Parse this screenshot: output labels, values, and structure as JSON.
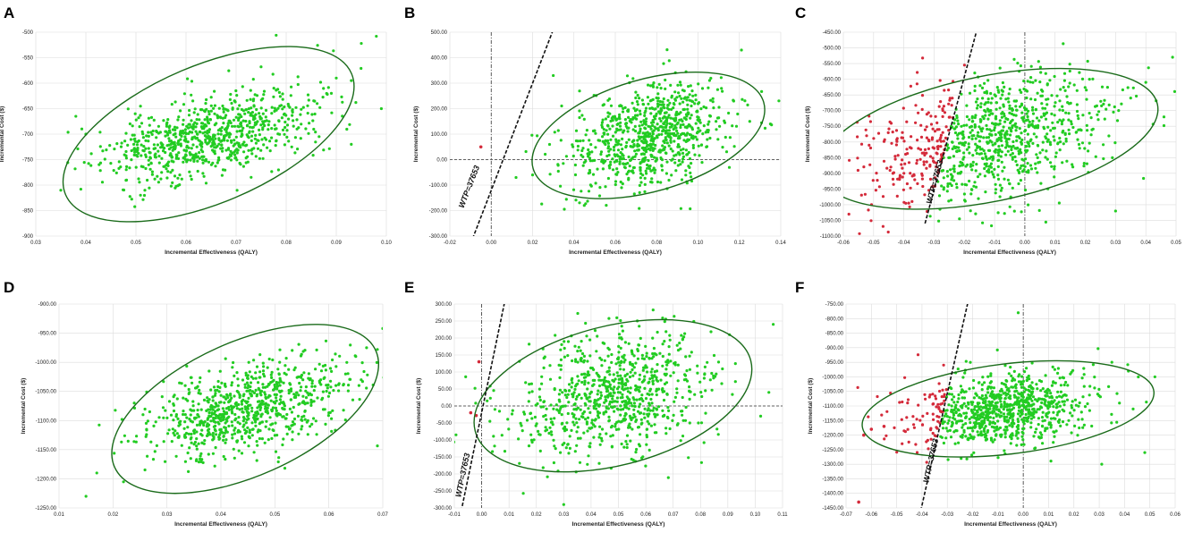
{
  "figure": {
    "panel_letters": [
      "A",
      "B",
      "C",
      "D",
      "E",
      "F"
    ]
  },
  "chart_data": [
    {
      "type": "scatter",
      "panel": "A",
      "xlabel": "Incremental Effectiveness (QALY)",
      "ylabel": "Incremental Cost ($)",
      "xlim": [
        0.03,
        0.1
      ],
      "ylim": [
        -900,
        -500
      ],
      "xticks": [
        0.03,
        0.04,
        0.05,
        0.06,
        0.07,
        0.08,
        0.09,
        0.1
      ],
      "xtick_labels": [
        "0.03",
        "0.04",
        "0.05",
        "0.06",
        "0.07",
        "0.08",
        "0.09",
        "0.10"
      ],
      "yticks": [
        -500,
        -550,
        -600,
        -650,
        -700,
        -750,
        -800,
        -850,
        -900
      ],
      "ytick_labels": [
        "-500",
        "-550",
        "-600",
        "-650",
        "-700",
        "-750",
        "-800",
        "-850",
        "-900"
      ],
      "cloud": {
        "n_points": 820,
        "center": [
          0.0645,
          -703
        ],
        "sd": [
          0.0105,
          44
        ],
        "corr": 0.5,
        "seed": 11,
        "color": "#22cc22"
      },
      "ellipse": {
        "center": [
          0.0645,
          -700
        ],
        "rx": 0.031,
        "ry": 135,
        "tilt": 0.4,
        "color": "#1a6b1a"
      },
      "extra_points": [
        {
          "x": 0.035,
          "y": -810
        },
        {
          "x": 0.038,
          "y": -665
        },
        {
          "x": 0.039,
          "y": -808
        },
        {
          "x": 0.04,
          "y": -700
        },
        {
          "x": 0.078,
          "y": -506
        },
        {
          "x": 0.09,
          "y": -590
        },
        {
          "x": 0.093,
          "y": -595
        },
        {
          "x": 0.095,
          "y": -522
        },
        {
          "x": 0.098,
          "y": -508
        },
        {
          "x": 0.093,
          "y": -720
        },
        {
          "x": 0.099,
          "y": -650
        }
      ],
      "wtp": null,
      "ref_x": null,
      "ref_y": null,
      "red_points": []
    },
    {
      "type": "scatter",
      "panel": "B",
      "xlabel": "Incremental Effectiveness (QALY)",
      "ylabel": "Incremental Cost ($)",
      "xlim": [
        -0.02,
        0.14
      ],
      "ylim": [
        -300,
        500
      ],
      "xticks": [
        -0.02,
        0,
        0.02,
        0.04,
        0.06,
        0.08,
        0.1,
        0.12,
        0.14
      ],
      "xtick_labels": [
        "-0.02",
        "0.00",
        "0.02",
        "0.04",
        "0.06",
        "0.08",
        "0.10",
        "0.12",
        "0.14"
      ],
      "yticks": [
        500,
        400,
        300,
        200,
        100,
        0,
        -100,
        -200,
        -300
      ],
      "ytick_labels": [
        "500.00",
        "400.00",
        "300.00",
        "200.00",
        "100.00",
        "0.00",
        "-100.00",
        "-200.00",
        "-300.00"
      ],
      "cloud": {
        "n_points": 820,
        "center": [
          0.076,
          95
        ],
        "sd": [
          0.019,
          105
        ],
        "corr": 0.4,
        "seed": 22,
        "color": "#22cc22"
      },
      "ellipse": {
        "center": [
          0.076,
          95
        ],
        "rx": 0.058,
        "ry": 220,
        "tilt": 0.28,
        "color": "#1a6b1a"
      },
      "extra_points": [
        {
          "x": 0.03,
          "y": 330
        },
        {
          "x": 0.012,
          "y": -70
        },
        {
          "x": 0.02,
          "y": -60
        },
        {
          "x": 0.135,
          "y": 140
        },
        {
          "x": 0.121,
          "y": 430
        },
        {
          "x": 0.125,
          "y": 150
        }
      ],
      "wtp": {
        "label": "WTP=37653",
        "p1": [
          -0.009,
          -310
        ],
        "p2": [
          0.03,
          510
        ],
        "label_at": [
          -0.0095,
          -110
        ]
      },
      "ref_x": 0,
      "ref_y": 0,
      "red_points": [
        {
          "x": -0.005,
          "y": 50
        }
      ]
    },
    {
      "type": "scatter",
      "panel": "C",
      "xlabel": "Incremental Effectiveness (QALY)",
      "ylabel": "Incremental Cost ($)",
      "xlim": [
        -0.06,
        0.05
      ],
      "ylim": [
        -1100,
        -450
      ],
      "xticks": [
        -0.06,
        -0.05,
        -0.04,
        -0.03,
        -0.02,
        -0.01,
        0,
        0.01,
        0.02,
        0.03,
        0.04,
        0.05
      ],
      "xtick_labels": [
        "-0.06",
        "-0.05",
        "-0.04",
        "-0.03",
        "-0.02",
        "-0.01",
        "0.00",
        "0.01",
        "0.02",
        "0.03",
        "0.04",
        "0.05"
      ],
      "yticks": [
        -450,
        -500,
        -550,
        -600,
        -650,
        -700,
        -750,
        -800,
        -850,
        -900,
        -950,
        -1000,
        -1050,
        -1100
      ],
      "ytick_labels": [
        "-450.00",
        "-500.00",
        "-550.00",
        "-600.00",
        "-650.00",
        "-700.00",
        "-750.00",
        "-800.00",
        "-850.00",
        "-900.00",
        "-950.00",
        "-1000.00",
        "-1050.00",
        "-1100.00"
      ],
      "cloud": {
        "n_points": 950,
        "center": [
          -0.012,
          -790
        ],
        "sd": [
          0.019,
          105
        ],
        "corr": 0.4,
        "seed": 33,
        "color": "#22cc22",
        "split_color": "#d42a3a"
      },
      "ellipse": {
        "center": [
          -0.012,
          -790
        ],
        "rx": 0.057,
        "ry": 200,
        "tilt": 0.2,
        "color": "#1a6b1a"
      },
      "extra_points": [
        {
          "x": 0.04,
          "y": -610
        },
        {
          "x": 0.046,
          "y": -720
        },
        {
          "x": 0.046,
          "y": -748
        },
        {
          "x": 0.03,
          "y": -1020
        },
        {
          "x": 0.035,
          "y": -660
        }
      ],
      "wtp": {
        "label": "WTP=37653",
        "p1": [
          -0.033,
          -1060
        ],
        "p2": [
          -0.0155,
          -430
        ],
        "label_at": [
          -0.029,
          -930
        ]
      },
      "ref_x": 0,
      "ref_y": null,
      "red_points": []
    },
    {
      "type": "scatter",
      "panel": "D",
      "xlabel": "Incremental Effectiveness (QALY)",
      "ylabel": "Incremental Cost ($)",
      "xlim": [
        0.01,
        0.07
      ],
      "ylim": [
        -1250,
        -900
      ],
      "xticks": [
        0.01,
        0.02,
        0.03,
        0.04,
        0.05,
        0.06,
        0.07
      ],
      "xtick_labels": [
        "0.01",
        "0.02",
        "0.03",
        "0.04",
        "0.05",
        "0.06",
        "0.07"
      ],
      "yticks": [
        -900,
        -950,
        -1000,
        -1050,
        -1100,
        -1150,
        -1200,
        -1250
      ],
      "ytick_labels": [
        "-900.00",
        "-950.00",
        "-1000.00",
        "-1050.00",
        "-1100.00",
        "-1150.00",
        "-1200.00",
        "-1250.00"
      ],
      "cloud": {
        "n_points": 820,
        "center": [
          0.0445,
          -1082
        ],
        "sd": [
          0.0095,
          42
        ],
        "corr": 0.5,
        "seed": 44,
        "color": "#22cc22"
      },
      "ellipse": {
        "center": [
          0.0445,
          -1080
        ],
        "rx": 0.0265,
        "ry": 115,
        "tilt": 0.42,
        "color": "#1a6b1a"
      },
      "extra_points": [
        {
          "x": 0.015,
          "y": -1230
        },
        {
          "x": 0.017,
          "y": -1190
        },
        {
          "x": 0.065,
          "y": -990
        },
        {
          "x": 0.067,
          "y": -975
        },
        {
          "x": 0.069,
          "y": -978
        },
        {
          "x": 0.07,
          "y": -942
        },
        {
          "x": 0.066,
          "y": -1030
        }
      ],
      "wtp": null,
      "ref_x": null,
      "ref_y": null,
      "red_points": []
    },
    {
      "type": "scatter",
      "panel": "E",
      "xlabel": "Incremental Effectiveness (QALY)",
      "ylabel": "Incremental Cost ($)",
      "xlim": [
        -0.01,
        0.11
      ],
      "ylim": [
        -300,
        300
      ],
      "xticks": [
        -0.01,
        0,
        0.01,
        0.02,
        0.03,
        0.04,
        0.05,
        0.06,
        0.07,
        0.08,
        0.09,
        0.1,
        0.11
      ],
      "xtick_labels": [
        "-0.01",
        "0.00",
        "0.01",
        "0.02",
        "0.03",
        "0.04",
        "0.05",
        "0.06",
        "0.07",
        "0.08",
        "0.09",
        "0.10",
        "0.11"
      ],
      "yticks": [
        300,
        250,
        200,
        150,
        100,
        50,
        0,
        -50,
        -100,
        -150,
        -200,
        -250,
        -300
      ],
      "ytick_labels": [
        "300.00",
        "250.00",
        "200.00",
        "150.00",
        "100.00",
        "50.00",
        "0.00",
        "-50.00",
        "-100.00",
        "-150.00",
        "-200.00",
        "-250.00",
        "-300.00"
      ],
      "cloud": {
        "n_points": 820,
        "center": [
          0.048,
          30
        ],
        "sd": [
          0.018,
          90
        ],
        "corr": 0.25,
        "seed": 55,
        "color": "#22cc22"
      },
      "ellipse": {
        "center": [
          0.048,
          30
        ],
        "rx": 0.052,
        "ry": 205,
        "tilt": 0.25,
        "color": "#1a6b1a"
      },
      "extra_points": [
        {
          "x": 0.105,
          "y": 40
        },
        {
          "x": 0.102,
          "y": -30
        },
        {
          "x": 0.03,
          "y": -290
        },
        {
          "x": 0.002,
          "y": 15
        },
        {
          "x": 0.003,
          "y": -45
        }
      ],
      "wtp": {
        "label": "WTP=37653",
        "p1": [
          -0.0075,
          -310
        ],
        "p2": [
          0.0085,
          310
        ],
        "label_at": [
          -0.006,
          -205
        ]
      },
      "ref_x": 0,
      "ref_y": 0,
      "red_points": [
        {
          "x": -0.001,
          "y": 130
        },
        {
          "x": -0.004,
          "y": -20
        },
        {
          "x": -0.002,
          "y": -28
        }
      ]
    },
    {
      "type": "scatter",
      "panel": "F",
      "xlabel": "Incremental Effectiveness (QALY)",
      "ylabel": "Incremental Cost ($)",
      "xlim": [
        -0.07,
        0.06
      ],
      "ylim": [
        -1450,
        -750
      ],
      "xticks": [
        -0.07,
        -0.06,
        -0.05,
        -0.04,
        -0.03,
        -0.02,
        -0.01,
        0,
        0.01,
        0.02,
        0.03,
        0.04,
        0.05,
        0.06
      ],
      "xtick_labels": [
        "-0.07",
        "-0.06",
        "-0.05",
        "-0.04",
        "-0.03",
        "-0.02",
        "-0.01",
        "0.00",
        "0.01",
        "0.02",
        "0.03",
        "0.04",
        "0.05",
        "0.06"
      ],
      "yticks": [
        -750,
        -800,
        -850,
        -900,
        -950,
        -1000,
        -1050,
        -1100,
        -1150,
        -1200,
        -1250,
        -1300,
        -1350,
        -1400,
        -1450
      ],
      "ytick_labels": [
        "-750.00",
        "-800.00",
        "-850.00",
        "-900.00",
        "-950.00",
        "-1000.00",
        "-1050.00",
        "-1100.00",
        "-1150.00",
        "-1200.00",
        "-1250.00",
        "-1300.00",
        "-1350.00",
        "-1400.00",
        "-1450.00"
      ],
      "cloud": {
        "n_points": 900,
        "center": [
          -0.008,
          -1112
        ],
        "sd": [
          0.017,
          62
        ],
        "corr": 0.25,
        "seed": 66,
        "color": "#22cc22",
        "split_color": "#d42a3a"
      },
      "ellipse": {
        "center": [
          -0.006,
          -1110
        ],
        "rx": 0.058,
        "ry": 155,
        "tilt": 0.12,
        "color": "#1a6b1a"
      },
      "extra_points": [
        {
          "x": 0.052,
          "y": -1000
        },
        {
          "x": 0.048,
          "y": -1260
        },
        {
          "x": 0.035,
          "y": -950
        },
        {
          "x": 0.038,
          "y": -1090
        },
        {
          "x": -0.002,
          "y": -780
        },
        {
          "x": 0.031,
          "y": -1300
        }
      ],
      "wtp": {
        "label": "WTP=37653",
        "p1": [
          -0.0405,
          -1460
        ],
        "p2": [
          -0.0215,
          -730
        ],
        "label_at": [
          -0.0355,
          -1290
        ]
      },
      "ref_x": 0,
      "ref_y": null,
      "red_points": [
        {
          "x": -0.063,
          "y": -1200
        },
        {
          "x": -0.065,
          "y": -1430
        },
        {
          "x": -0.06,
          "y": -1180
        },
        {
          "x": -0.055,
          "y": -1170
        }
      ]
    }
  ]
}
